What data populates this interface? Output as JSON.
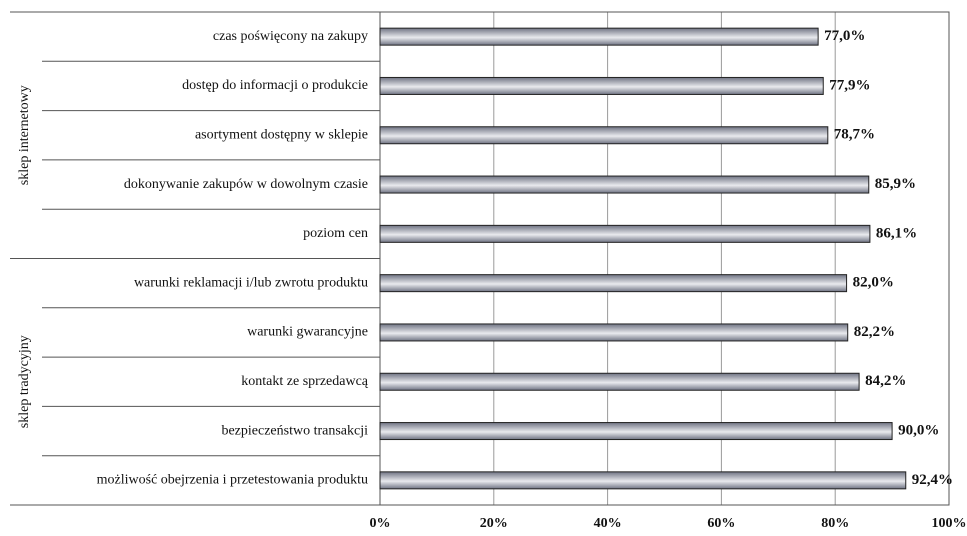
{
  "chart_data": {
    "type": "bar",
    "orientation": "horizontal",
    "groups": [
      {
        "label": "sklep internetowy",
        "categories": [
          "czas poświęcony na zakupy",
          "dostęp do informacji o produkcie",
          "asortyment dostępny w sklepie",
          "dokonywanie zakupów w dowolnym czasie",
          "poziom cen"
        ],
        "values": [
          77.0,
          77.9,
          78.7,
          85.9,
          86.1
        ],
        "value_labels": [
          "77,0%",
          "77,9%",
          "78,7%",
          "85,9%",
          "86,1%"
        ]
      },
      {
        "label": "sklep tradycyjny",
        "categories": [
          "warunki reklamacji i/lub zwrotu produktu",
          "warunki gwarancyjne",
          "kontakt ze sprzedawcą",
          "bezpieczeństwo transakcji",
          "możliwość obejrzenia i przetestowania produktu"
        ],
        "values": [
          82.0,
          82.2,
          84.2,
          90.0,
          92.4
        ],
        "value_labels": [
          "82,0%",
          "82,2%",
          "84,2%",
          "90,0%",
          "92,4%"
        ]
      }
    ],
    "x_ticks": [
      "0%",
      "20%",
      "40%",
      "60%",
      "80%",
      "100%"
    ],
    "xlim": [
      0,
      100
    ],
    "grid": true,
    "legend": "none",
    "title": "",
    "xlabel": "",
    "ylabel": ""
  },
  "colors": {
    "bar_dark": "#6f7383",
    "bar_light": "#e9eaee",
    "bar_stroke": "#222222",
    "grid": "#9a9a9a",
    "axis": "#555555",
    "text": "#111111"
  }
}
